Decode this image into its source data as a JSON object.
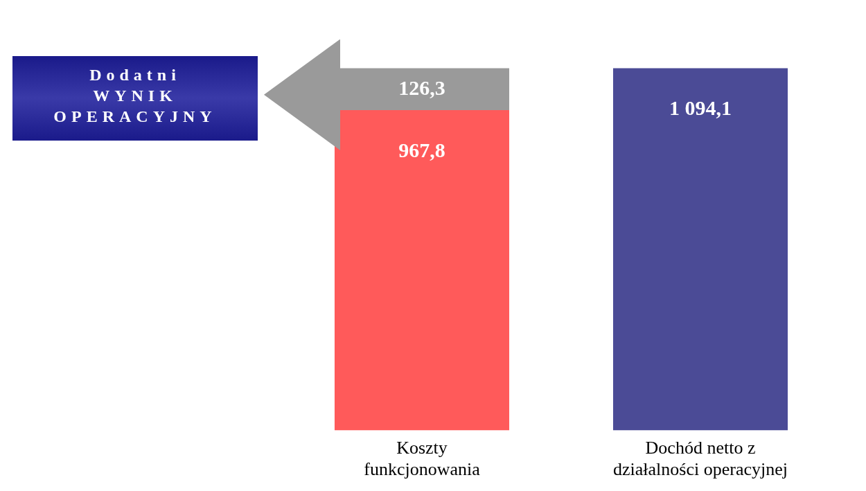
{
  "chart_data": {
    "type": "bar",
    "stacked": true,
    "categories": [
      "Koszty\nfunkcjonowania",
      "Dochód netto z\ndziałalności operacyjnej"
    ],
    "series": [
      {
        "color": "#ff5a5a",
        "values": [
          967.8,
          null
        ],
        "value_labels": [
          "967,8",
          null
        ]
      },
      {
        "color": "#9a9a9a",
        "values": [
          126.3,
          null
        ],
        "value_labels": [
          "126,3",
          null
        ]
      },
      {
        "color": "#4b4b96",
        "values": [
          null,
          1094.1
        ],
        "value_labels": [
          null,
          "1 094,1"
        ]
      }
    ],
    "annotations": [
      "Dodatni\nWYNIK\nOPERACYJNY"
    ],
    "grid": false,
    "legend": false
  }
}
